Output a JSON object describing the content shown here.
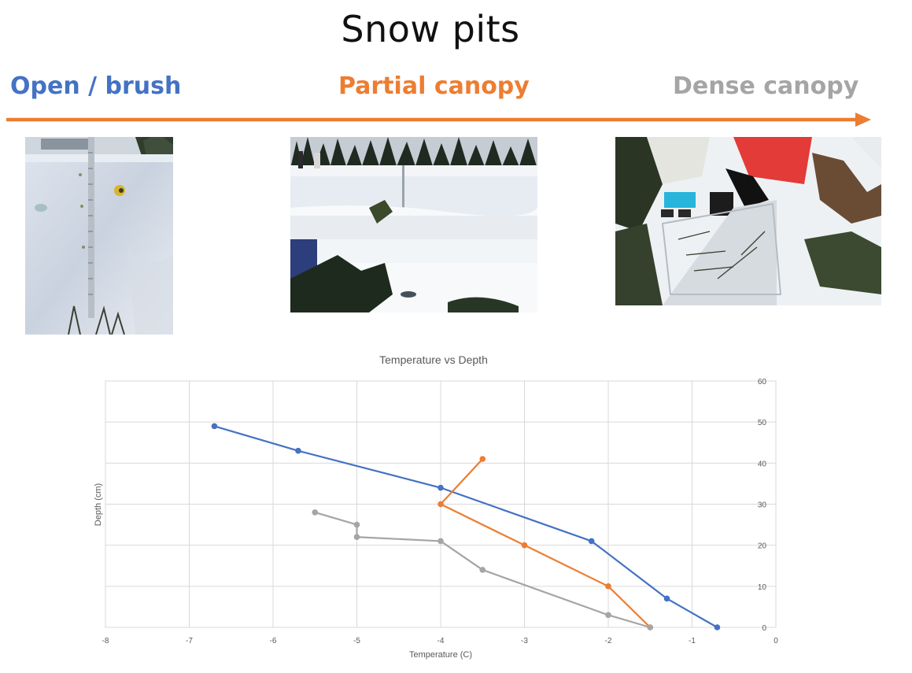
{
  "slide": {
    "title": "Snow pits"
  },
  "categories": {
    "open": "Open / brush",
    "partial": "Partial canopy",
    "dense": "Dense canopy"
  },
  "colors": {
    "open": "#4472c4",
    "partial": "#ed7d31",
    "dense": "#a5a5a5",
    "arrow": "#ed7d31"
  },
  "chart_data": {
    "type": "scatter",
    "title": "Temperature vs Depth",
    "xlabel": "Temperature (C)",
    "ylabel": "Depth (cm)",
    "xlim": [
      -8,
      0
    ],
    "ylim": [
      0,
      60
    ],
    "x_ticks": [
      "-8",
      "-7",
      "-6",
      "-5",
      "-4",
      "-3",
      "-2",
      "-1",
      "0"
    ],
    "y_ticks": [
      "0",
      "10",
      "20",
      "30",
      "40",
      "50",
      "60"
    ],
    "grid": true,
    "legend": "none",
    "series": [
      {
        "color": "#4472c4",
        "points": [
          {
            "x": -6.7,
            "y": 49
          },
          {
            "x": -5.7,
            "y": 43
          },
          {
            "x": -4.0,
            "y": 34
          },
          {
            "x": -2.2,
            "y": 21
          },
          {
            "x": -1.3,
            "y": 7
          },
          {
            "x": -0.7,
            "y": 0
          }
        ]
      },
      {
        "color": "#ed7d31",
        "points": [
          {
            "x": -3.5,
            "y": 41
          },
          {
            "x": -4.0,
            "y": 30
          },
          {
            "x": -3.0,
            "y": 20
          },
          {
            "x": -2.0,
            "y": 10
          },
          {
            "x": -1.5,
            "y": 0
          }
        ]
      },
      {
        "color": "#a5a5a5",
        "points": [
          {
            "x": -5.5,
            "y": 28
          },
          {
            "x": -5.0,
            "y": 25
          },
          {
            "x": -5.0,
            "y": 22
          },
          {
            "x": -4.0,
            "y": 21
          },
          {
            "x": -3.5,
            "y": 14
          },
          {
            "x": -2.0,
            "y": 3
          },
          {
            "x": -1.5,
            "y": 0
          }
        ]
      }
    ]
  }
}
